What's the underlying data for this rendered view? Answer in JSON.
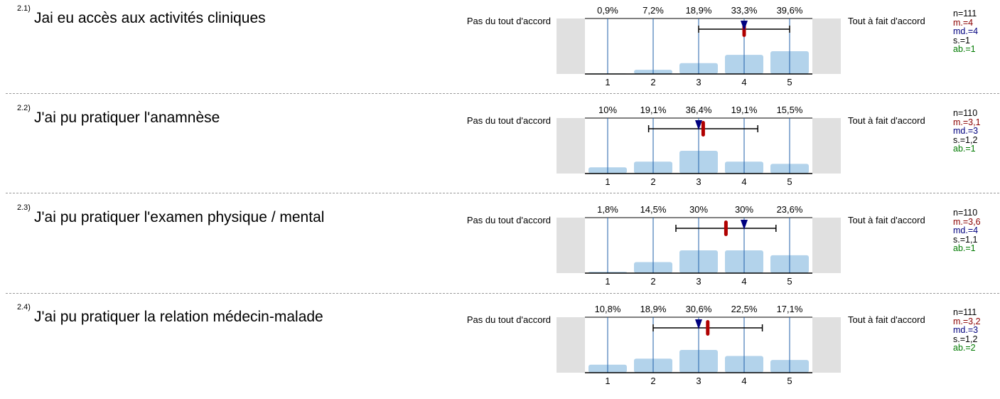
{
  "items": [
    {
      "number": "2.1)",
      "question": "Jai eu accès aux activités cliniques",
      "left_label": "Pas du tout d'accord",
      "right_label": "Tout à fait d'accord",
      "stats": {
        "n": "n=111",
        "mean": "m.=4",
        "median": "md.=4",
        "sd": "s.=1",
        "abstentions": "ab.=1"
      },
      "chart_data": {
        "type": "bar",
        "categories": [
          "1",
          "2",
          "3",
          "4",
          "5"
        ],
        "values": [
          0.9,
          7.2,
          18.9,
          33.3,
          39.6
        ],
        "value_labels": [
          "0,9%",
          "7,2%",
          "18,9%",
          "33,3%",
          "39,6%"
        ],
        "mean": 4.0,
        "median": 4,
        "sd": 1.0
      }
    },
    {
      "number": "2.2)",
      "question": "J'ai pu pratiquer l'anamnèse",
      "left_label": "Pas du tout d'accord",
      "right_label": "Tout à fait d'accord",
      "stats": {
        "n": "n=110",
        "mean": "m.=3,1",
        "median": "md.=3",
        "sd": "s.=1,2",
        "abstentions": "ab.=1"
      },
      "chart_data": {
        "type": "bar",
        "categories": [
          "1",
          "2",
          "3",
          "4",
          "5"
        ],
        "values": [
          10,
          19.1,
          36.4,
          19.1,
          15.5
        ],
        "value_labels": [
          "10%",
          "19,1%",
          "36,4%",
          "19,1%",
          "15,5%"
        ],
        "mean": 3.1,
        "median": 3,
        "sd": 1.2
      }
    },
    {
      "number": "2.3)",
      "question": "J'ai pu pratiquer l'examen physique / mental",
      "left_label": "Pas du tout d'accord",
      "right_label": "Tout à fait d'accord",
      "stats": {
        "n": "n=110",
        "mean": "m.=3,6",
        "median": "md.=4",
        "sd": "s.=1,1",
        "abstentions": "ab.=1"
      },
      "chart_data": {
        "type": "bar",
        "categories": [
          "1",
          "2",
          "3",
          "4",
          "5"
        ],
        "values": [
          1.8,
          14.5,
          30,
          30,
          23.6
        ],
        "value_labels": [
          "1,8%",
          "14,5%",
          "30%",
          "30%",
          "23,6%"
        ],
        "mean": 3.6,
        "median": 4,
        "sd": 1.1
      }
    },
    {
      "number": "2.4)",
      "question": "J'ai pu pratiquer la relation médecin-malade",
      "left_label": "Pas du tout d'accord",
      "right_label": "Tout à fait d'accord",
      "stats": {
        "n": "n=111",
        "mean": "m.=3,2",
        "median": "md.=3",
        "sd": "s.=1,2",
        "abstentions": "ab.=2"
      },
      "chart_data": {
        "type": "bar",
        "categories": [
          "1",
          "2",
          "3",
          "4",
          "5"
        ],
        "values": [
          10.8,
          18.9,
          30.6,
          22.5,
          17.1
        ],
        "value_labels": [
          "10,8%",
          "18,9%",
          "30,6%",
          "22,5%",
          "17,1%"
        ],
        "mean": 3.2,
        "median": 3,
        "sd": 1.2
      }
    }
  ],
  "colors": {
    "bar": "#b3d3eb",
    "grid": "#1f5fa8",
    "grey": "#e0e0e0",
    "mean": "#b00000",
    "median": "#00007f"
  }
}
